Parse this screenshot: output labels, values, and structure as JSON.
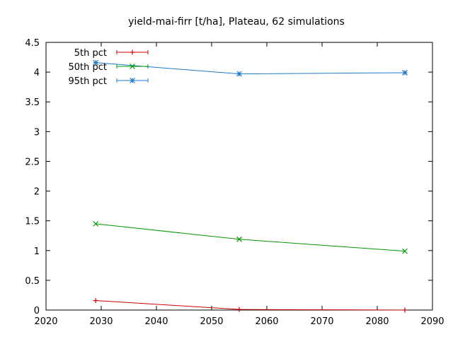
{
  "chart_data": {
    "type": "line",
    "title": "yield-mai-firr [t/ha], Plateau, 62 simulations",
    "xlabel": "",
    "ylabel": "",
    "xlim": [
      2020,
      2090
    ],
    "ylim": [
      0,
      4.5
    ],
    "x_ticks": [
      "2020",
      "2030",
      "2040",
      "2050",
      "2060",
      "2070",
      "2080",
      "2090"
    ],
    "y_ticks": [
      "0",
      "0.5",
      "1",
      "1.5",
      "2",
      "2.5",
      "3",
      "3.5",
      "4",
      "4.5"
    ],
    "grid": false,
    "legend_position": "top-left",
    "series": [
      {
        "name": "5th pct",
        "color": "#cc0000",
        "marker": "plus",
        "x": [
          2029,
          2055,
          2085
        ],
        "y": [
          0.16,
          0.01,
          0.0
        ]
      },
      {
        "name": "50th pct",
        "color": "#009900",
        "marker": "cross",
        "x": [
          2029,
          2055,
          2085
        ],
        "y": [
          1.45,
          1.19,
          0.99
        ]
      },
      {
        "name": "95th pct",
        "color": "#1f78c8",
        "marker": "star",
        "x": [
          2029,
          2055,
          2085
        ],
        "y": [
          4.16,
          3.97,
          3.99
        ]
      }
    ]
  }
}
